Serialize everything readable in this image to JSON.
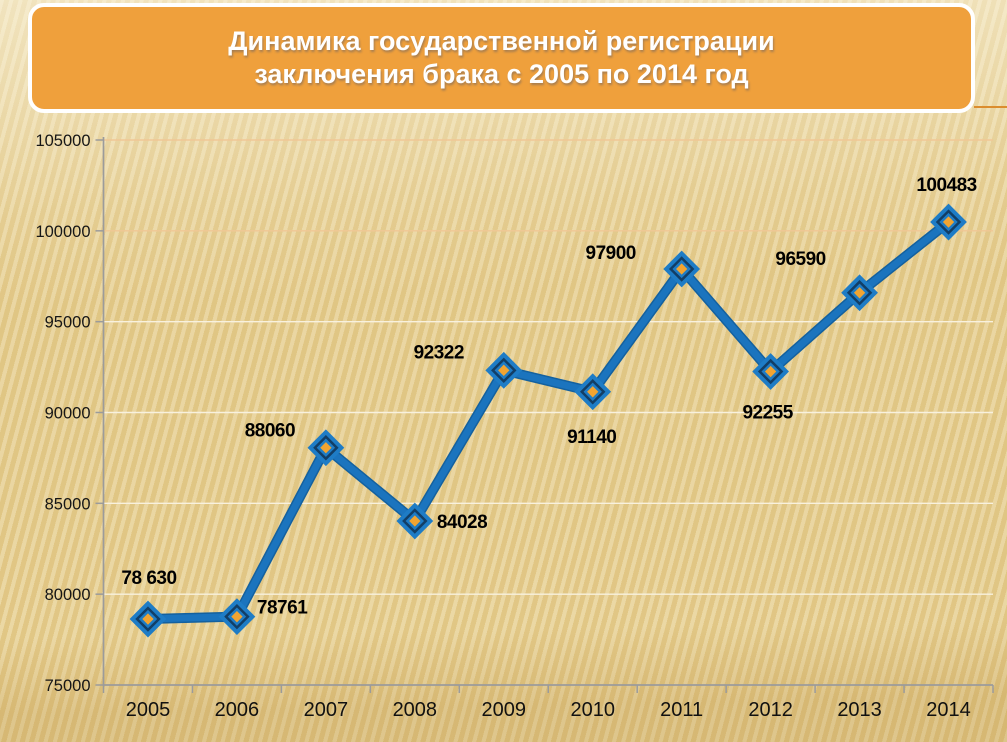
{
  "slide": {
    "title": {
      "line1": "Динамика государственной регистрации",
      "line2": "заключения брака с 2005 по 2014 год"
    },
    "colors": {
      "title_text": "#FFFFFF",
      "title_box": "#EFA03C",
      "title_border": "#FFFFFF",
      "accent_line": "#DB8D2E",
      "background_stripe_light": "#F6E9BC",
      "background_stripe_dark": "#EAD496"
    }
  },
  "chart_data": {
    "type": "line",
    "title": "Динамика государственной регистрации заключения брака с 2005 по 2014 год",
    "categories": [
      "2005",
      "2006",
      "2007",
      "2008",
      "2009",
      "2010",
      "2011",
      "2012",
      "2013",
      "2014"
    ],
    "values": [
      78630,
      78761,
      88060,
      84028,
      92322,
      91140,
      97900,
      92255,
      96590,
      100483
    ],
    "labels": [
      "78 630",
      "78761",
      "88060",
      "84028",
      "92322",
      "91140",
      "97900",
      "92255",
      "96590",
      "100483"
    ],
    "yticks": [
      "105000",
      "100000",
      "95000",
      "90000",
      "85000",
      "80000",
      "75000"
    ],
    "ylim": [
      75000,
      105000
    ],
    "xlabel": "",
    "ylabel": "",
    "grid": true,
    "legend": false,
    "line_color": "#1B74BE",
    "line_shadow_color": "#14619F",
    "marker_outer_color": "#1E7CC6",
    "marker_ring_color": "#123E66",
    "marker_center_color": "#F2A431",
    "gridline_color": "#F0C795",
    "gridline_pale_color": "#F8F1DE",
    "data_label_color": "#000000",
    "axis_color": "#9B9B9B",
    "tick_label_color": "#161616"
  }
}
